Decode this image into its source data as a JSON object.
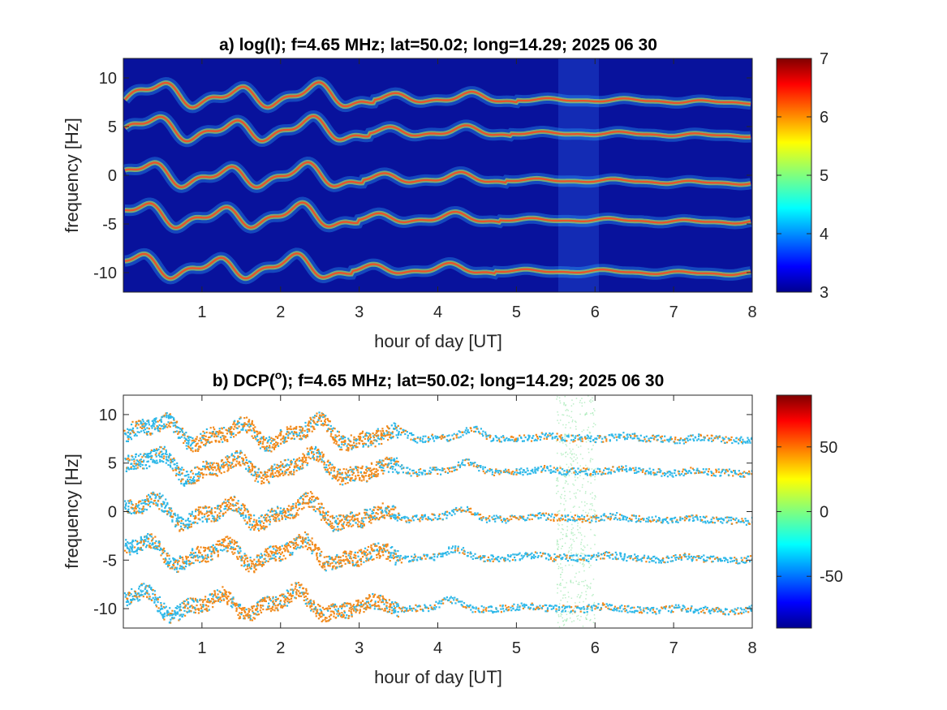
{
  "chart_data": [
    {
      "type": "heatmap",
      "title": "a) log(I); f=4.65 MHz;  lat=50.02; long=14.29; 2025 06 30",
      "xlabel": "hour of day [UT]",
      "ylabel": "frequency [Hz]",
      "xlim": [
        0,
        8
      ],
      "ylim": [
        -12,
        12
      ],
      "xticks": [
        "1",
        "2",
        "3",
        "4",
        "5",
        "6",
        "7",
        "8"
      ],
      "yticks": [
        "-10",
        "-5",
        "0",
        "5",
        "10"
      ],
      "colorbar": {
        "range": [
          3,
          7
        ],
        "ticks": [
          "3",
          "4",
          "5",
          "6",
          "7"
        ],
        "colormap": "jet"
      },
      "background_color": "#08129c",
      "trace_color": "#e8542a",
      "traces": [
        {
          "base_frequency": 8.3,
          "end_frequency": 7.5
        },
        {
          "base_frequency": 4.8,
          "end_frequency": 4.1
        },
        {
          "base_frequency": 0.1,
          "end_frequency": -0.8
        },
        {
          "base_frequency": -4.1,
          "end_frequency": -4.8
        },
        {
          "base_frequency": -9.3,
          "end_frequency": -10.1
        }
      ],
      "noise_band_hours": [
        5.5,
        6.0
      ]
    },
    {
      "type": "heatmap",
      "title_prefix": "b) DCP(",
      "title_superscript": "o",
      "title_suffix": "); f=4.65 MHz;  lat=50.02; long=14.29; 2025 06 30",
      "xlabel": "hour of day [UT]",
      "ylabel": "frequency [Hz]",
      "xlim": [
        0,
        8
      ],
      "ylim": [
        -12,
        12
      ],
      "xticks": [
        "1",
        "2",
        "3",
        "4",
        "5",
        "6",
        "7",
        "8"
      ],
      "yticks": [
        "-10",
        "-5",
        "0",
        "5",
        "10"
      ],
      "colorbar": {
        "range": [
          -90,
          90
        ],
        "ticks": [
          "-50",
          "0",
          "50"
        ],
        "colormap": "jet"
      },
      "background_color": "#ffffff",
      "positive_color": "#f28a1c",
      "negative_color": "#2fb8e8",
      "traces": [
        {
          "base_frequency": 8.3,
          "end_frequency": 7.5
        },
        {
          "base_frequency": 4.8,
          "end_frequency": 4.1
        },
        {
          "base_frequency": 0.1,
          "end_frequency": -0.8
        },
        {
          "base_frequency": -4.1,
          "end_frequency": -4.8
        },
        {
          "base_frequency": -9.3,
          "end_frequency": -10.1
        }
      ],
      "noise_band_hours": [
        5.5,
        6.0
      ]
    }
  ]
}
